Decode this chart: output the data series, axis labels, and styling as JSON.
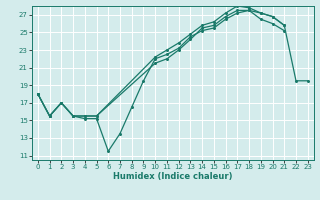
{
  "title": "",
  "xlabel": "Humidex (Indice chaleur)",
  "bg_color": "#d4ecec",
  "grid_color": "#ffffff",
  "line_color": "#1a7a6a",
  "xlim": [
    -0.5,
    23.5
  ],
  "ylim": [
    10.5,
    28.0
  ],
  "xticks": [
    0,
    1,
    2,
    3,
    4,
    5,
    6,
    7,
    8,
    9,
    10,
    11,
    12,
    13,
    14,
    15,
    16,
    17,
    18,
    19,
    20,
    21,
    22,
    23
  ],
  "yticks": [
    11,
    13,
    15,
    17,
    19,
    21,
    23,
    25,
    27
  ],
  "series1_x": [
    0,
    1,
    2,
    3,
    4,
    5,
    6,
    7,
    8,
    9,
    10,
    11,
    12,
    13,
    14,
    15,
    16,
    17,
    18,
    19,
    20,
    21
  ],
  "series1_y": [
    18.0,
    15.5,
    17.0,
    15.5,
    15.2,
    15.2,
    11.5,
    13.5,
    16.5,
    19.5,
    22.0,
    22.5,
    23.2,
    24.5,
    25.2,
    25.5,
    26.5,
    27.2,
    27.5,
    26.5,
    26.0,
    25.2
  ],
  "series2_x": [
    0,
    1,
    2,
    3,
    4,
    5,
    10,
    11,
    12,
    13,
    14,
    15,
    16,
    17,
    18,
    19,
    20,
    21
  ],
  "series2_y": [
    18.0,
    15.5,
    17.0,
    15.5,
    15.5,
    15.5,
    21.5,
    22.0,
    23.0,
    24.2,
    25.5,
    25.8,
    26.8,
    27.5,
    27.5,
    27.2,
    26.8,
    25.8
  ],
  "series3_x": [
    0,
    1,
    2,
    3,
    4,
    5,
    10,
    11,
    12,
    13,
    14,
    15,
    16,
    17,
    18,
    19,
    20,
    21,
    22,
    23
  ],
  "series3_y": [
    18.0,
    15.5,
    17.0,
    15.5,
    15.5,
    15.5,
    22.2,
    23.0,
    23.8,
    24.8,
    25.8,
    26.2,
    27.2,
    28.0,
    27.8,
    27.2,
    26.8,
    25.8,
    19.5,
    19.5
  ]
}
